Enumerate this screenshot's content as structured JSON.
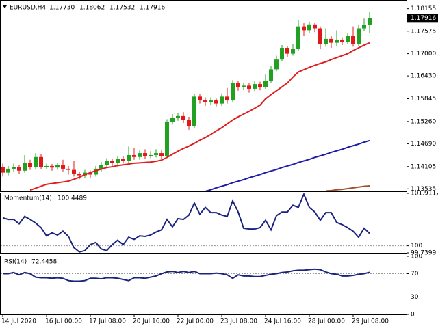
{
  "chart_data": [
    {
      "type": "candlestick",
      "symbol": "EURUSD,H4",
      "header_labels": [
        "1.17730",
        "1.18062",
        "1.17532",
        "1.17916"
      ],
      "up_color": "#22a022",
      "down_color": "#e01818",
      "ylim": [
        1.1347,
        1.1836
      ],
      "yticks": [
        1.18155,
        1.17575,
        {
          "value": 1.17,
          "label": "1.17000"
        },
        {
          "value": 1.1643,
          "label": "1.16430"
        },
        1.15845,
        {
          "value": 1.1526,
          "label": "1.15260"
        },
        {
          "value": 1.1469,
          "label": "1.14690"
        },
        1.14105,
        1.13535
      ],
      "price_label": {
        "value": 1.17916,
        "label": "1.17916"
      },
      "open": [
        1.141,
        1.1395,
        1.1405,
        1.141,
        1.14,
        1.142,
        1.141,
        1.1435,
        1.141,
        1.1412,
        1.1408,
        1.1415,
        1.1405,
        1.1402,
        1.1392,
        1.1388,
        1.1395,
        1.139,
        1.1405,
        1.1415,
        1.1425,
        1.142,
        1.143,
        1.1425,
        1.144,
        1.1435,
        1.1445,
        1.1438,
        1.144,
        1.1445,
        1.1438,
        1.1525,
        1.1535,
        1.154,
        1.153,
        1.1515,
        1.159,
        1.158,
        1.1575,
        1.158,
        1.1572,
        1.159,
        1.158,
        1.1625,
        1.1615,
        1.1618,
        1.161,
        1.1622,
        1.1615,
        1.163,
        1.166,
        1.1685,
        1.1715,
        1.17,
        1.1712,
        1.177,
        1.176,
        1.1775,
        1.1765,
        1.1725,
        1.1738,
        1.1728,
        1.1735,
        1.173,
        1.1745,
        1.1725,
        1.1765,
        1.1773
      ],
      "high": [
        1.1418,
        1.1412,
        1.1418,
        1.1415,
        1.144,
        1.1428,
        1.1445,
        1.1442,
        1.1418,
        1.1417,
        1.142,
        1.1428,
        1.1412,
        1.1425,
        1.1398,
        1.1402,
        1.14,
        1.1412,
        1.1422,
        1.1432,
        1.143,
        1.1437,
        1.1438,
        1.1462,
        1.1458,
        1.1452,
        1.1455,
        1.145,
        1.1455,
        1.1452,
        1.1532,
        1.1545,
        1.1548,
        1.155,
        1.1538,
        1.1598,
        1.1596,
        1.1588,
        1.1588,
        1.1585,
        1.1598,
        1.1612,
        1.1632,
        1.163,
        1.1626,
        1.1624,
        1.163,
        1.1628,
        1.1648,
        1.1668,
        1.1695,
        1.1722,
        1.172,
        1.1725,
        1.1785,
        1.1778,
        1.1782,
        1.178,
        1.177,
        1.1765,
        1.1745,
        1.176,
        1.1742,
        1.1752,
        1.177,
        1.1775,
        1.179,
        1.18062
      ],
      "low": [
        1.1385,
        1.1388,
        1.1398,
        1.1392,
        1.1395,
        1.1402,
        1.1405,
        1.1404,
        1.1404,
        1.14,
        1.1402,
        1.1398,
        1.139,
        1.1385,
        1.1378,
        1.138,
        1.1382,
        1.1385,
        1.1398,
        1.1408,
        1.1412,
        1.1414,
        1.1418,
        1.1418,
        1.1428,
        1.1428,
        1.143,
        1.1432,
        1.1434,
        1.143,
        1.1432,
        1.1518,
        1.1528,
        1.1522,
        1.1505,
        1.151,
        1.1572,
        1.1566,
        1.1568,
        1.1565,
        1.1566,
        1.1572,
        1.1575,
        1.1605,
        1.1606,
        1.16,
        1.1604,
        1.1606,
        1.161,
        1.1625,
        1.1655,
        1.168,
        1.1692,
        1.1695,
        1.1708,
        1.1745,
        1.1752,
        1.1755,
        1.1712,
        1.1718,
        1.1715,
        1.172,
        1.1722,
        1.1725,
        1.1718,
        1.172,
        1.1758,
        1.17532
      ],
      "close": [
        1.1395,
        1.1405,
        1.141,
        1.14,
        1.142,
        1.141,
        1.1435,
        1.141,
        1.1412,
        1.1408,
        1.1415,
        1.1405,
        1.1402,
        1.1392,
        1.1388,
        1.1395,
        1.139,
        1.1405,
        1.1415,
        1.1425,
        1.142,
        1.143,
        1.1425,
        1.144,
        1.1435,
        1.1445,
        1.1438,
        1.144,
        1.1445,
        1.1438,
        1.1525,
        1.1535,
        1.154,
        1.153,
        1.1515,
        1.159,
        1.158,
        1.1575,
        1.158,
        1.1572,
        1.159,
        1.158,
        1.1625,
        1.1615,
        1.1618,
        1.161,
        1.1622,
        1.1615,
        1.163,
        1.166,
        1.1685,
        1.1715,
        1.17,
        1.1712,
        1.177,
        1.176,
        1.1775,
        1.1765,
        1.1725,
        1.1738,
        1.1728,
        1.1735,
        1.173,
        1.1745,
        1.1725,
        1.1765,
        1.1773,
        1.17916
      ],
      "lines": [
        {
          "color": "#e01c1c",
          "values": [
            null,
            null,
            null,
            null,
            null,
            1.135,
            1.1355,
            1.136,
            1.1365,
            1.1367,
            1.1369,
            1.1371,
            1.1373,
            1.1378,
            1.1383,
            1.139,
            1.1395,
            1.14,
            1.1404,
            1.1408,
            1.141,
            1.1413,
            1.1415,
            1.1417,
            1.1419,
            1.142,
            1.1421,
            1.1422,
            1.1424,
            1.1427,
            1.1434,
            1.1442,
            1.145,
            1.1457,
            1.1463,
            1.147,
            1.1478,
            1.1485,
            1.1493,
            1.1502,
            1.151,
            1.152,
            1.153,
            1.1538,
            1.1545,
            1.1552,
            1.156,
            1.1568,
            1.1584,
            1.1595,
            1.1605,
            1.1615,
            1.1625,
            1.164,
            1.1653,
            1.1659,
            1.1665,
            1.167,
            1.1675,
            1.1679,
            1.1685,
            1.169,
            1.1695,
            1.17,
            1.1708,
            1.1715,
            1.1722,
            1.1728
          ]
        },
        {
          "color": "#1c1ca8",
          "values": [
            null,
            null,
            null,
            null,
            null,
            null,
            null,
            null,
            null,
            null,
            null,
            null,
            null,
            null,
            null,
            null,
            null,
            null,
            null,
            null,
            null,
            null,
            null,
            null,
            null,
            null,
            null,
            null,
            null,
            null,
            null,
            null,
            null,
            null,
            null,
            null,
            null,
            1.1347,
            1.1351,
            1.1356,
            1.136,
            1.1364,
            1.1369,
            1.1373,
            1.1377,
            1.1382,
            1.1386,
            1.139,
            1.1395,
            1.1399,
            1.1403,
            1.1408,
            1.1412,
            1.1416,
            1.1421,
            1.1425,
            1.1429,
            1.1434,
            1.1438,
            1.1442,
            1.1447,
            1.1451,
            1.1455,
            1.146,
            1.1464,
            1.1468,
            1.1473,
            1.1477
          ]
        },
        {
          "color": "#a0522d",
          "values": [
            null,
            null,
            null,
            null,
            null,
            null,
            null,
            null,
            null,
            null,
            null,
            null,
            null,
            null,
            null,
            null,
            null,
            null,
            null,
            null,
            null,
            null,
            null,
            null,
            null,
            null,
            null,
            null,
            null,
            null,
            null,
            null,
            null,
            null,
            null,
            null,
            null,
            null,
            null,
            null,
            null,
            null,
            null,
            null,
            null,
            null,
            null,
            null,
            null,
            null,
            null,
            null,
            null,
            null,
            null,
            null,
            null,
            null,
            null,
            1.1348,
            1.1349,
            1.1351,
            1.1352,
            1.1354,
            1.1356,
            1.1358,
            1.136,
            1.1361
          ]
        }
      ]
    },
    {
      "type": "line",
      "title": "Momentum(14)",
      "color": "#1a237e",
      "ylim": [
        99.7399,
        101.9112
      ],
      "yticks": [
        101.9112,
        100,
        99.7399
      ],
      "levels": [
        100
      ],
      "values": [
        101.02,
        100.96,
        100.96,
        100.8,
        101.07,
        100.96,
        100.83,
        100.66,
        100.36,
        100.47,
        100.39,
        100.53,
        100.34,
        99.93,
        99.77,
        99.82,
        100.04,
        100.12,
        99.88,
        99.82,
        100.04,
        100.2,
        100.04,
        100.31,
        100.23,
        100.36,
        100.34,
        100.39,
        100.5,
        100.58,
        100.96,
        100.69,
        100.99,
        100.96,
        101.12,
        101.56,
        101.15,
        101.4,
        101.21,
        101.21,
        101.12,
        101.07,
        101.64,
        101.23,
        100.64,
        100.61,
        100.61,
        100.66,
        100.93,
        100.58,
        101.1,
        101.23,
        101.23,
        101.48,
        101.4,
        101.88,
        101.4,
        101.23,
        100.93,
        101.21,
        101.21,
        100.85,
        100.77,
        100.66,
        100.53,
        100.31,
        100.64,
        100.4489
      ]
    },
    {
      "type": "line",
      "title": "RSI(14)",
      "color": "#1a237e",
      "ylim": [
        0,
        100
      ],
      "yticks": [
        100,
        70,
        30,
        0
      ],
      "levels": [
        70,
        30
      ],
      "values": [
        70,
        70,
        72,
        68,
        72,
        70,
        64,
        63,
        63,
        62,
        63,
        62,
        58,
        57,
        57,
        58,
        62,
        62,
        61,
        63,
        63,
        62,
        60,
        58,
        63,
        63,
        62,
        64,
        66,
        70,
        73,
        74,
        72,
        74,
        72,
        74,
        70,
        70,
        70,
        71,
        70,
        68,
        62,
        68,
        66,
        66,
        65,
        65,
        67,
        69,
        70,
        72,
        73,
        75,
        76,
        76,
        77,
        78,
        77,
        73,
        70,
        69,
        66,
        66,
        67,
        69,
        70,
        72.4458
      ],
      "categories": [
        "14 Jul 2020",
        null,
        null,
        null,
        null,
        null,
        null,
        null,
        "16 Jul 00:00",
        null,
        null,
        null,
        null,
        null,
        null,
        null,
        "17 Jul 08:00",
        null,
        null,
        null,
        null,
        null,
        null,
        null,
        "20 Jul 16:00",
        null,
        null,
        null,
        null,
        null,
        null,
        null,
        "22 Jul 00:00",
        null,
        null,
        null,
        null,
        null,
        null,
        null,
        "23 Jul 08:00",
        null,
        null,
        null,
        null,
        null,
        null,
        null,
        "24 Jul 16:00",
        null,
        null,
        null,
        null,
        null,
        null,
        null,
        "28 Jul 00:00",
        null,
        null,
        null,
        null,
        null,
        null,
        null,
        "29 Jul 08:00",
        null,
        null,
        null
      ]
    }
  ]
}
